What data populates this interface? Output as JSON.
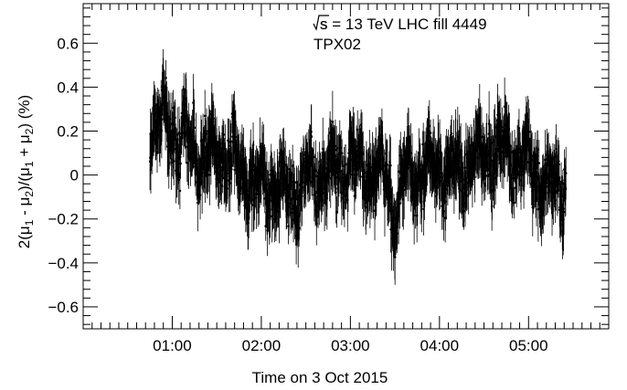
{
  "chart_data": {
    "type": "scatter",
    "title": "",
    "xlabel": "Time on 3 Oct 2015",
    "ylabel_parts": [
      "2(μ",
      "1",
      " - μ",
      "2",
      ")/(μ",
      "1",
      " + μ",
      "2",
      ") (%)"
    ],
    "xlim_hours": [
      0.0,
      5.9
    ],
    "ylim": [
      -0.7,
      0.78
    ],
    "x_tick_labels": [
      "01:00",
      "02:00",
      "03:00",
      "04:00",
      "05:00"
    ],
    "x_tick_hours": [
      1,
      2,
      3,
      4,
      5
    ],
    "y_ticks": [
      -0.6,
      -0.4,
      -0.2,
      0,
      0.2,
      0.4,
      0.6
    ],
    "y_tick_labels": [
      "−0.6",
      "−0.4",
      "−0.2",
      "0",
      "0.2",
      "0.4",
      "0.6"
    ],
    "annotation_energy_prefix": "s = 13 TeV   LHC fill 4449",
    "annotation_detector": "TPX02",
    "grid": false,
    "series": [
      {
        "marker": "point-with-error-bar",
        "color": "#000000",
        "x_hours_range": [
          0.75,
          5.42
        ],
        "profile_hours": [
          0.75,
          0.9,
          1.0,
          1.2,
          1.4,
          1.6,
          1.8,
          2.0,
          2.2,
          2.4,
          2.6,
          2.8,
          3.0,
          3.2,
          3.4,
          3.5,
          3.6,
          3.8,
          4.0,
          4.2,
          4.4,
          4.6,
          4.8,
          5.0,
          5.2,
          5.42
        ],
        "profile_mean": [
          0.2,
          0.25,
          0.2,
          0.12,
          0.1,
          0.08,
          0.0,
          -0.05,
          -0.06,
          -0.08,
          0.0,
          0.02,
          0.05,
          0.02,
          0.0,
          -0.2,
          -0.02,
          0.0,
          0.05,
          0.0,
          0.08,
          0.12,
          0.1,
          0.05,
          -0.05,
          -0.05
        ],
        "typical_error": 0.1
      }
    ]
  }
}
